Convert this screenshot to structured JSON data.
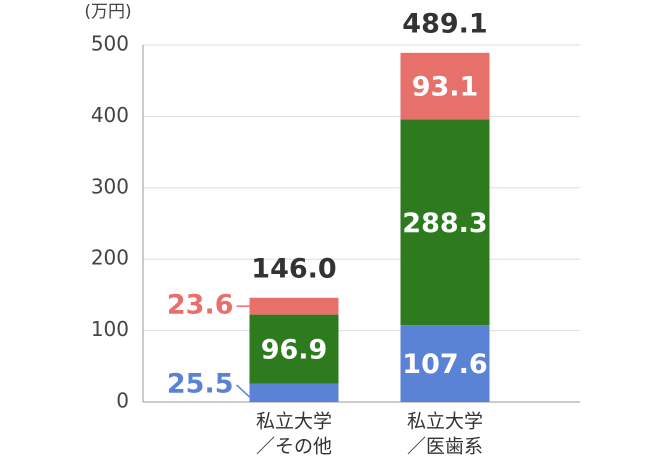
{
  "chart_data": {
    "type": "stacked-bar",
    "y_label": "(万円)",
    "categories": [
      [
        "私立大学",
        "／その他"
      ],
      [
        "私立大学",
        "／医歯系"
      ]
    ],
    "series": [
      {
        "color": "#5a83d5",
        "values": [
          25.5,
          107.6
        ]
      },
      {
        "color": "#2d7a1f",
        "values": [
          96.9,
          288.3
        ]
      },
      {
        "color": "#e8706a",
        "values": [
          23.6,
          93.1
        ]
      }
    ],
    "totals": {
      "values": [
        146.0,
        489.1
      ],
      "value_labels": [
        "146.0",
        "489.1"
      ]
    },
    "ylim": [
      0,
      500
    ],
    "yticks": [
      0,
      100,
      200,
      300,
      400,
      500
    ],
    "grid": true
  }
}
